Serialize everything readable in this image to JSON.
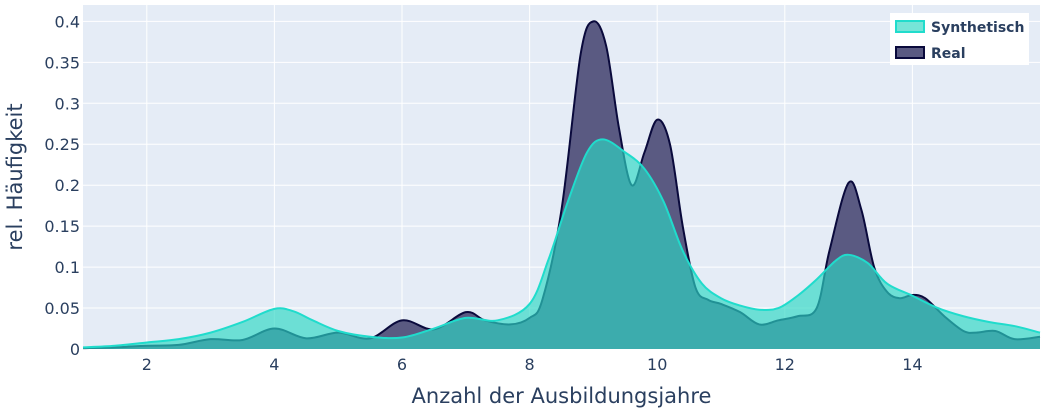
{
  "chart_data": {
    "type": "area",
    "xlabel": "Anzahl der Ausbildungsjahre",
    "ylabel": "rel. Häufigkeit",
    "xlim": [
      1,
      16
    ],
    "ylim": [
      0,
      0.42
    ],
    "xticks": [
      2,
      4,
      6,
      8,
      10,
      12,
      14
    ],
    "yticks": [
      0,
      0.05,
      0.1,
      0.15,
      0.2,
      0.25,
      0.3,
      0.35,
      0.4
    ],
    "ytick_labels": [
      "0",
      "0.05",
      "0.1",
      "0.15",
      "0.2",
      "0.25",
      "0.3",
      "0.35",
      "0.4"
    ],
    "grid": true,
    "legend_position": "top-right",
    "series": [
      {
        "name": "Real",
        "line_color": "#0a0a3c",
        "fill_color": "#5a5a82",
        "points": [
          [
            1,
            0.001
          ],
          [
            1.5,
            0.002
          ],
          [
            2,
            0.004
          ],
          [
            2.5,
            0.005
          ],
          [
            3,
            0.012
          ],
          [
            3.5,
            0.011
          ],
          [
            4,
            0.025
          ],
          [
            4.5,
            0.013
          ],
          [
            5,
            0.02
          ],
          [
            5.5,
            0.013
          ],
          [
            6,
            0.035
          ],
          [
            6.5,
            0.024
          ],
          [
            7,
            0.045
          ],
          [
            7.3,
            0.035
          ],
          [
            7.7,
            0.03
          ],
          [
            8,
            0.038
          ],
          [
            8.2,
            0.06
          ],
          [
            8.5,
            0.17
          ],
          [
            8.8,
            0.36
          ],
          [
            9,
            0.4
          ],
          [
            9.2,
            0.37
          ],
          [
            9.4,
            0.27
          ],
          [
            9.6,
            0.2
          ],
          [
            9.8,
            0.24
          ],
          [
            10,
            0.28
          ],
          [
            10.2,
            0.25
          ],
          [
            10.4,
            0.15
          ],
          [
            10.6,
            0.075
          ],
          [
            10.8,
            0.06
          ],
          [
            11,
            0.055
          ],
          [
            11.3,
            0.045
          ],
          [
            11.6,
            0.03
          ],
          [
            11.9,
            0.035
          ],
          [
            12.2,
            0.04
          ],
          [
            12.5,
            0.05
          ],
          [
            12.7,
            0.12
          ],
          [
            13,
            0.203
          ],
          [
            13.2,
            0.17
          ],
          [
            13.4,
            0.1
          ],
          [
            13.6,
            0.07
          ],
          [
            13.8,
            0.062
          ],
          [
            14,
            0.066
          ],
          [
            14.2,
            0.062
          ],
          [
            14.5,
            0.04
          ],
          [
            14.8,
            0.022
          ],
          [
            15,
            0.02
          ],
          [
            15.3,
            0.022
          ],
          [
            15.6,
            0.012
          ],
          [
            16,
            0.015
          ]
        ]
      },
      {
        "name": "Synthetisch",
        "line_color": "#20dccc",
        "fill_color": "rgba(45,215,196,0.66)",
        "points": [
          [
            1,
            0.002
          ],
          [
            1.5,
            0.004
          ],
          [
            2,
            0.008
          ],
          [
            2.5,
            0.012
          ],
          [
            3,
            0.02
          ],
          [
            3.5,
            0.033
          ],
          [
            4,
            0.049
          ],
          [
            4.3,
            0.046
          ],
          [
            4.6,
            0.035
          ],
          [
            5,
            0.022
          ],
          [
            5.5,
            0.015
          ],
          [
            6,
            0.014
          ],
          [
            6.5,
            0.025
          ],
          [
            7,
            0.038
          ],
          [
            7.5,
            0.035
          ],
          [
            8,
            0.055
          ],
          [
            8.3,
            0.11
          ],
          [
            8.6,
            0.18
          ],
          [
            8.9,
            0.24
          ],
          [
            9.15,
            0.256
          ],
          [
            9.5,
            0.24
          ],
          [
            9.8,
            0.22
          ],
          [
            10.1,
            0.18
          ],
          [
            10.4,
            0.12
          ],
          [
            10.7,
            0.08
          ],
          [
            11,
            0.062
          ],
          [
            11.3,
            0.053
          ],
          [
            11.6,
            0.048
          ],
          [
            11.9,
            0.05
          ],
          [
            12.2,
            0.065
          ],
          [
            12.5,
            0.085
          ],
          [
            12.8,
            0.108
          ],
          [
            13,
            0.115
          ],
          [
            13.3,
            0.105
          ],
          [
            13.6,
            0.08
          ],
          [
            14,
            0.065
          ],
          [
            14.4,
            0.05
          ],
          [
            14.8,
            0.04
          ],
          [
            15.2,
            0.033
          ],
          [
            15.6,
            0.028
          ],
          [
            16,
            0.02
          ]
        ]
      }
    ],
    "legend_order": [
      "Synthetisch",
      "Real"
    ]
  }
}
